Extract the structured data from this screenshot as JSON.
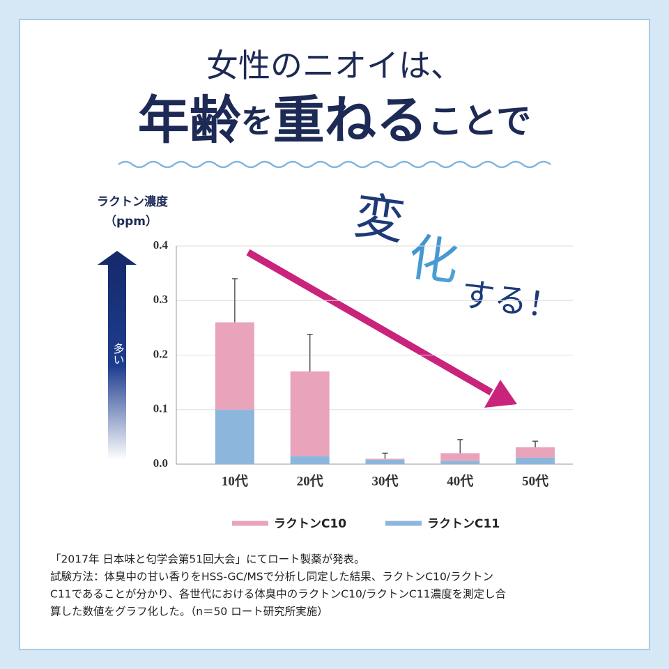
{
  "title_line1": "女性のニオイは、",
  "title_line2": [
    "年齢",
    "を",
    "重ねる",
    "ことで"
  ],
  "callout": [
    "変",
    "化",
    "する！"
  ],
  "side_label": "多い",
  "chart_data": {
    "type": "stacked-bar",
    "ylabel": [
      "ラクトン濃度",
      "（ppm）"
    ],
    "categories": [
      "10代",
      "20代",
      "30代",
      "40代",
      "50代"
    ],
    "series": [
      {
        "name": "ラクトンC10",
        "color": "#e9a3ba",
        "values": [
          0.16,
          0.155,
          0.002,
          0.014,
          0.019
        ],
        "errors": [
          0.08,
          0.068,
          0.01,
          0.025,
          0.011
        ]
      },
      {
        "name": "ラクトンC11",
        "color": "#8db6dc",
        "values": [
          0.1,
          0.015,
          0.008,
          0.006,
          0.012
        ]
      }
    ],
    "ylim": [
      0,
      0.4
    ],
    "yticks": [
      {
        "value": 0,
        "label": "0.0"
      },
      0.1,
      0.2,
      0.3,
      0.4
    ],
    "grid": true
  },
  "footnote": [
    "「2017年 日本味と匂学会第51回大会」にてロート製薬が発表。",
    "試験方法：体臭中の甘い香りをHSS-GC/MSで分析し同定した結果、ラクトンC10/ラクトン",
    "C11であることが分かり、各世代における体臭中のラクトンC10/ラクトンC11濃度を測定し合",
    "算した数値をグラフ化した。（n＝50 ロート研究所実施）"
  ]
}
